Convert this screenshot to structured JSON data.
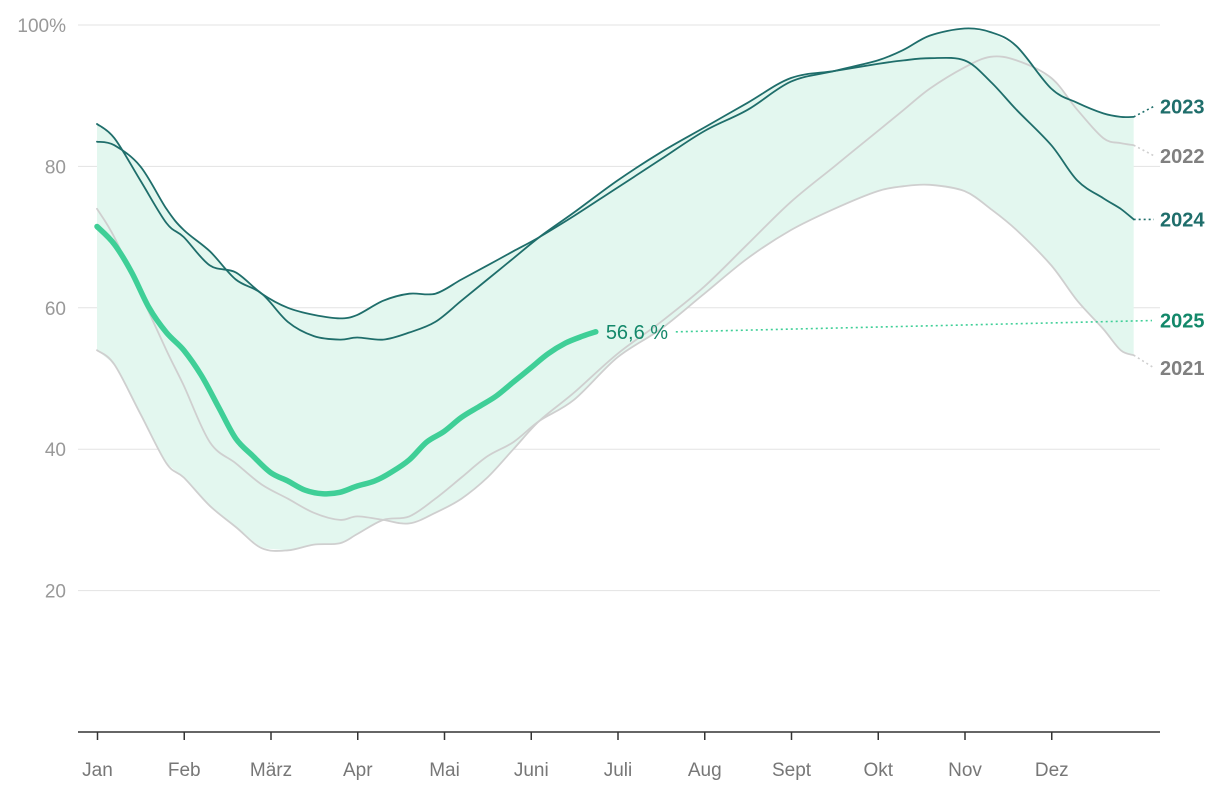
{
  "colors": {
    "background": "#ffffff",
    "grid": "#e3e3e3",
    "axis": "#333333",
    "band_fill": "#e3f7ef",
    "band_fill_light": "#f1fbf7",
    "dark_teal": "#1f6e6b",
    "light_gray": "#cfcfcf",
    "gray_label": "#808080",
    "current_green": "#3fcf97",
    "label_green": "#13886a"
  },
  "chart_data": {
    "type": "line",
    "x_unit": "month",
    "xlim": [
      0,
      12
    ],
    "ylim": [
      0,
      100
    ],
    "y_ticks": [
      20,
      40,
      60,
      80,
      100
    ],
    "y_tick_labels": [
      "20",
      "40",
      "60",
      "80",
      "100%"
    ],
    "categories": [
      "Jan",
      "Feb",
      "März",
      "Apr",
      "Mai",
      "Juni",
      "Juli",
      "Aug",
      "Sept",
      "Okt",
      "Nov",
      "Dez"
    ],
    "grid": "horizontal",
    "series": [
      {
        "name": "2021",
        "color": "#cfcfcf",
        "label_color": "#808080",
        "x": [
          0,
          0.2,
          0.5,
          0.8,
          1.0,
          1.3,
          1.6,
          1.9,
          2.2,
          2.5,
          2.8,
          3.0,
          3.3,
          3.6,
          3.9,
          4.2,
          4.5,
          4.8,
          5.1,
          5.5,
          6.0,
          6.5,
          7.0,
          7.5,
          8.0,
          8.5,
          9.0,
          9.3,
          9.6,
          10.0,
          10.3,
          10.6,
          11.0,
          11.3,
          11.6,
          11.8,
          11.95
        ],
        "values": [
          54,
          52,
          45,
          38,
          36,
          32,
          29,
          26,
          25.7,
          26.5,
          26.7,
          28,
          30,
          30.5,
          33,
          36,
          39,
          41,
          44,
          47,
          53,
          57,
          62,
          67,
          71,
          74,
          76.5,
          77.2,
          77.4,
          76.5,
          74,
          71,
          66,
          61,
          57,
          54,
          53.3
        ],
        "end_label": "2021",
        "end_label_y": 51.5
      },
      {
        "name": "2022",
        "color": "#cfcfcf",
        "label_color": "#808080",
        "x": [
          0,
          0.2,
          0.5,
          0.8,
          1.0,
          1.3,
          1.6,
          1.9,
          2.2,
          2.5,
          2.8,
          3.0,
          3.3,
          3.6,
          3.9,
          4.2,
          4.5,
          4.8,
          5.1,
          5.5,
          6.0,
          6.5,
          7.0,
          7.5,
          8.0,
          8.5,
          9.0,
          9.3,
          9.6,
          10.0,
          10.3,
          10.6,
          11.0,
          11.3,
          11.6,
          11.8,
          11.95
        ],
        "values": [
          74,
          70,
          62,
          54,
          49,
          41,
          38,
          35,
          33,
          31,
          30,
          30.5,
          30,
          29.5,
          31,
          33,
          36,
          40,
          44,
          48,
          53.5,
          58,
          63,
          69,
          75,
          80,
          85,
          88,
          91,
          94,
          95.5,
          95,
          92.5,
          88,
          84,
          83.3,
          83
        ],
        "end_label": "2022",
        "end_label_y": 81.5
      },
      {
        "name": "2023",
        "color": "#1f6e6b",
        "label_color": "#1f6e6b",
        "x": [
          0,
          0.2,
          0.5,
          0.8,
          1.0,
          1.3,
          1.6,
          1.9,
          2.2,
          2.5,
          2.8,
          3.0,
          3.3,
          3.6,
          3.9,
          4.2,
          4.5,
          4.8,
          5.1,
          5.5,
          6.0,
          6.5,
          7.0,
          7.5,
          8.0,
          8.5,
          9.0,
          9.3,
          9.6,
          10.0,
          10.3,
          10.6,
          11.0,
          11.3,
          11.6,
          11.8,
          11.95
        ],
        "values": [
          86,
          84,
          78,
          72,
          70,
          66,
          65,
          62,
          60,
          59,
          58.5,
          59,
          61,
          62,
          62,
          64,
          66,
          68,
          70,
          73,
          77,
          81,
          85,
          88,
          92,
          93.5,
          95,
          96.5,
          98.5,
          99.5,
          99,
          97,
          91,
          89,
          87.5,
          87,
          87
        ],
        "end_label": "2023",
        "end_label_y": 88.5
      },
      {
        "name": "2024",
        "color": "#1f6e6b",
        "label_color": "#1f6e6b",
        "x": [
          0,
          0.2,
          0.5,
          0.8,
          1.0,
          1.3,
          1.6,
          1.9,
          2.2,
          2.5,
          2.8,
          3.0,
          3.3,
          3.6,
          3.9,
          4.2,
          4.5,
          4.8,
          5.1,
          5.5,
          6.0,
          6.5,
          7.0,
          7.5,
          8.0,
          8.5,
          9.0,
          9.3,
          9.6,
          10.0,
          10.3,
          10.6,
          11.0,
          11.3,
          11.6,
          11.8,
          11.95
        ],
        "values": [
          83.5,
          83,
          80,
          74,
          71,
          68,
          64,
          62,
          58,
          56,
          55.5,
          55.8,
          55.5,
          56.5,
          58,
          61,
          64,
          67,
          70,
          73.5,
          78,
          82,
          85.5,
          89,
          92.5,
          93.5,
          94.5,
          95,
          95.3,
          95,
          92,
          88,
          83,
          78,
          75.5,
          74,
          72.5
        ],
        "end_label": "2024",
        "end_label_y": 72.5
      },
      {
        "name": "2025",
        "color": "#3fcf97",
        "label_color": "#13886a",
        "x": [
          0,
          0.2,
          0.4,
          0.6,
          0.8,
          1.0,
          1.2,
          1.4,
          1.6,
          1.8,
          2.0,
          2.2,
          2.4,
          2.6,
          2.8,
          3.0,
          3.2,
          3.4,
          3.6,
          3.8,
          4.0,
          4.2,
          4.4,
          4.6,
          4.8,
          5.0,
          5.2,
          5.4,
          5.6,
          5.75
        ],
        "values": [
          71.5,
          69,
          65,
          60,
          56.5,
          54,
          50.5,
          46,
          41.5,
          39,
          36.7,
          35.5,
          34.2,
          33.7,
          33.9,
          34.8,
          35.5,
          36.8,
          38.5,
          41,
          42.5,
          44.5,
          46,
          47.5,
          49.5,
          51.5,
          53.5,
          55,
          56,
          56.6
        ],
        "end_label": "2025",
        "end_label_y": 58.2,
        "annotation": "56,6 %",
        "annotation_x": 5.75,
        "annotation_y": 56.6
      }
    ]
  }
}
